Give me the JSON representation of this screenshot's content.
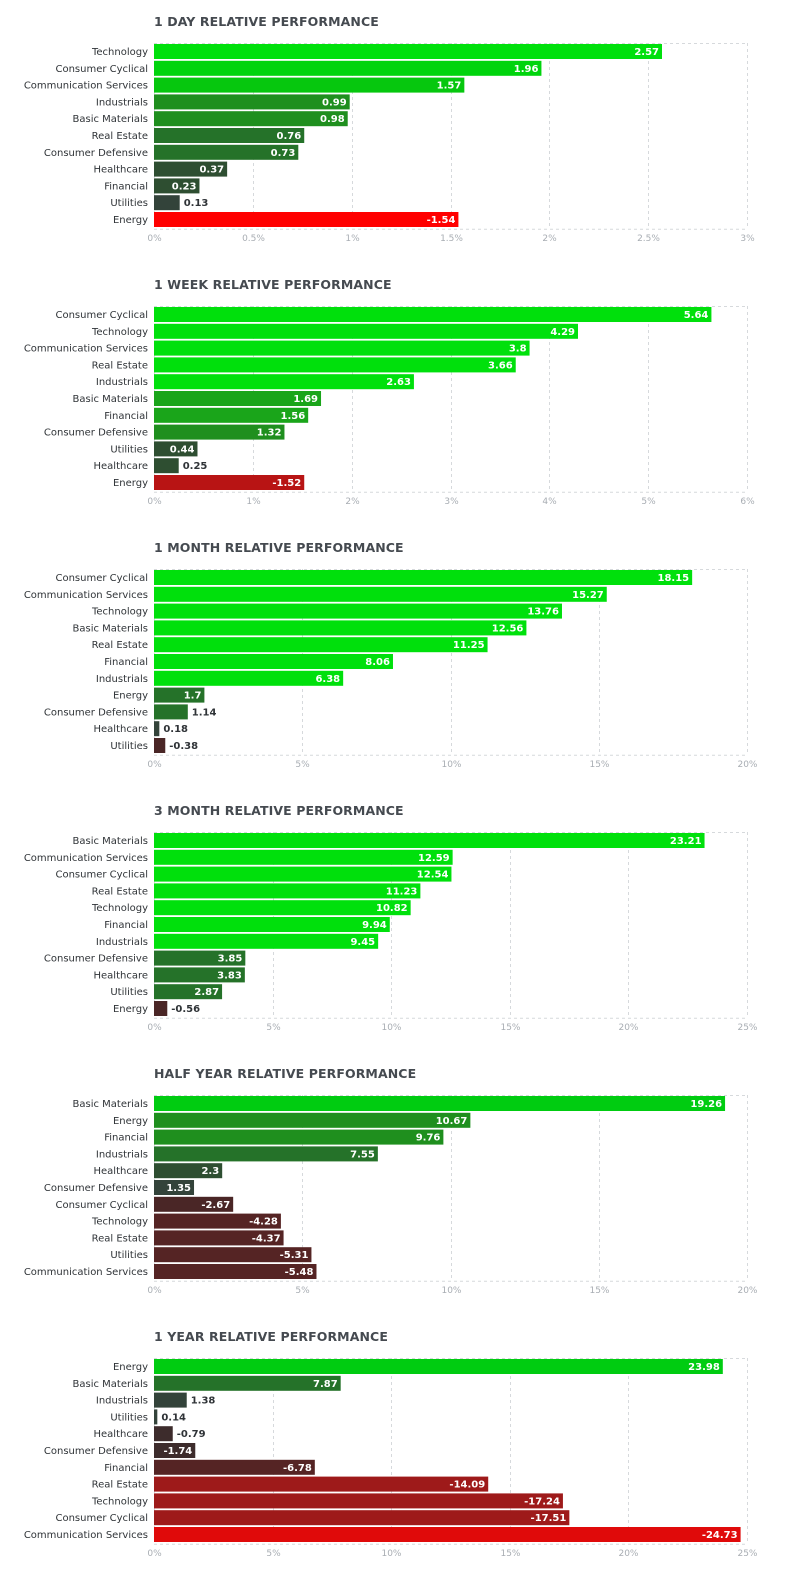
{
  "chart_data": [
    {
      "type": "bar",
      "orientation": "horizontal",
      "title": "1 DAY RELATIVE PERFORMANCE",
      "categories": [
        "Technology",
        "Consumer Cyclical",
        "Communication Services",
        "Industrials",
        "Basic Materials",
        "Real Estate",
        "Consumer Defensive",
        "Healthcare",
        "Financial",
        "Utilities",
        "Energy"
      ],
      "values": [
        2.57,
        1.96,
        1.57,
        0.99,
        0.98,
        0.76,
        0.73,
        0.37,
        0.23,
        0.13,
        -1.54
      ],
      "value_labels": [
        "2.57",
        "1.96",
        "1.57",
        "0.99",
        "0.98",
        "0.76",
        "0.73",
        "0.37",
        "0.23",
        "0.13",
        "-1.54"
      ],
      "bar_colors": [
        "#00e00c",
        "#00d40d",
        "#06c70e",
        "#1f8f1e",
        "#1f8f1e",
        "#257229",
        "#257229",
        "#2e4e31",
        "#2e4e31",
        "#33433a",
        "#ff0000"
      ],
      "xlim": [
        0,
        3
      ],
      "xticks": [
        0,
        0.5,
        1,
        1.5,
        2,
        2.5,
        3
      ],
      "xtick_labels": [
        "0%",
        "0.5%",
        "1%",
        "1.5%",
        "2%",
        "2.5%",
        "3%"
      ],
      "grid": true
    },
    {
      "type": "bar",
      "orientation": "horizontal",
      "title": "1 WEEK RELATIVE PERFORMANCE",
      "categories": [
        "Consumer Cyclical",
        "Technology",
        "Communication Services",
        "Real Estate",
        "Industrials",
        "Basic Materials",
        "Financial",
        "Consumer Defensive",
        "Utilities",
        "Healthcare",
        "Energy"
      ],
      "values": [
        5.64,
        4.29,
        3.8,
        3.66,
        2.63,
        1.69,
        1.56,
        1.32,
        0.44,
        0.25,
        -1.52
      ],
      "value_labels": [
        "5.64",
        "4.29",
        "3.8",
        "3.66",
        "2.63",
        "1.69",
        "1.56",
        "1.32",
        "0.44",
        "0.25",
        "-1.52"
      ],
      "bar_colors": [
        "#00e00c",
        "#00e00c",
        "#00e00c",
        "#00e00c",
        "#00e00c",
        "#1aa51a",
        "#1aa51a",
        "#1f8f1e",
        "#2e4e31",
        "#2e4e31",
        "#b81414"
      ],
      "xlim": [
        0,
        6
      ],
      "xticks": [
        0,
        1,
        2,
        3,
        4,
        5,
        6
      ],
      "xtick_labels": [
        "0%",
        "1%",
        "2%",
        "3%",
        "4%",
        "5%",
        "6%"
      ],
      "grid": true
    },
    {
      "type": "bar",
      "orientation": "horizontal",
      "title": "1 MONTH RELATIVE PERFORMANCE",
      "categories": [
        "Consumer Cyclical",
        "Communication Services",
        "Technology",
        "Basic Materials",
        "Real Estate",
        "Financial",
        "Industrials",
        "Energy",
        "Consumer Defensive",
        "Healthcare",
        "Utilities"
      ],
      "values": [
        18.15,
        15.27,
        13.76,
        12.56,
        11.25,
        8.06,
        6.38,
        1.7,
        1.14,
        0.18,
        -0.38
      ],
      "value_labels": [
        "18.15",
        "15.27",
        "13.76",
        "12.56",
        "11.25",
        "8.06",
        "6.38",
        "1.7",
        "1.14",
        "0.18",
        "-0.38"
      ],
      "bar_colors": [
        "#00e00c",
        "#00e00c",
        "#00e00c",
        "#00e00c",
        "#00e00c",
        "#00e00c",
        "#00e00c",
        "#257229",
        "#257229",
        "#33433a",
        "#4a2626"
      ],
      "xlim": [
        0,
        20
      ],
      "xticks": [
        0,
        5,
        10,
        15,
        20
      ],
      "xtick_labels": [
        "0%",
        "5%",
        "10%",
        "15%",
        "20%"
      ],
      "grid": true
    },
    {
      "type": "bar",
      "orientation": "horizontal",
      "title": "3 MONTH RELATIVE PERFORMANCE",
      "categories": [
        "Basic Materials",
        "Communication Services",
        "Consumer Cyclical",
        "Real Estate",
        "Technology",
        "Financial",
        "Industrials",
        "Consumer Defensive",
        "Healthcare",
        "Utilities",
        "Energy"
      ],
      "values": [
        23.21,
        12.59,
        12.54,
        11.23,
        10.82,
        9.94,
        9.45,
        3.85,
        3.83,
        2.87,
        -0.56
      ],
      "value_labels": [
        "23.21",
        "12.59",
        "12.54",
        "11.23",
        "10.82",
        "9.94",
        "9.45",
        "3.85",
        "3.83",
        "2.87",
        "-0.56"
      ],
      "bar_colors": [
        "#00e00c",
        "#00e00c",
        "#00e00c",
        "#00e00c",
        "#00e00c",
        "#00e00c",
        "#00e00c",
        "#257229",
        "#257229",
        "#257229",
        "#4a2626"
      ],
      "xlim": [
        0,
        25
      ],
      "xticks": [
        0,
        5,
        10,
        15,
        20,
        25
      ],
      "xtick_labels": [
        "0%",
        "5%",
        "10%",
        "15%",
        "20%",
        "25%"
      ],
      "grid": true
    },
    {
      "type": "bar",
      "orientation": "horizontal",
      "title": "HALF YEAR RELATIVE PERFORMANCE",
      "categories": [
        "Basic Materials",
        "Energy",
        "Financial",
        "Industrials",
        "Healthcare",
        "Consumer Defensive",
        "Consumer Cyclical",
        "Technology",
        "Real Estate",
        "Utilities",
        "Communication Services"
      ],
      "values": [
        19.26,
        10.67,
        9.76,
        7.55,
        2.3,
        1.35,
        -2.67,
        -4.28,
        -4.37,
        -5.31,
        -5.48
      ],
      "value_labels": [
        "19.26",
        "10.67",
        "9.76",
        "7.55",
        "2.3",
        "1.35",
        "-2.67",
        "-4.28",
        "-4.37",
        "-5.31",
        "-5.48"
      ],
      "bar_colors": [
        "#00cc11",
        "#1f8f1e",
        "#1f8f1e",
        "#257229",
        "#2e4e31",
        "#33433a",
        "#4a2626",
        "#552424",
        "#552424",
        "#552424",
        "#552424"
      ],
      "xlim": [
        0,
        20
      ],
      "xticks": [
        0,
        5,
        10,
        15,
        20
      ],
      "xtick_labels": [
        "0%",
        "5%",
        "10%",
        "15%",
        "20%"
      ],
      "grid": true
    },
    {
      "type": "bar",
      "orientation": "horizontal",
      "title": "1 YEAR RELATIVE PERFORMANCE",
      "categories": [
        "Energy",
        "Basic Materials",
        "Industrials",
        "Utilities",
        "Healthcare",
        "Consumer Defensive",
        "Financial",
        "Real Estate",
        "Technology",
        "Consumer Cyclical",
        "Communication Services"
      ],
      "values": [
        23.98,
        7.87,
        1.38,
        0.14,
        -0.79,
        -1.74,
        -6.78,
        -14.09,
        -17.24,
        -17.51,
        -24.73
      ],
      "value_labels": [
        "23.98",
        "7.87",
        "1.38",
        "0.14",
        "-0.79",
        "-1.74",
        "-6.78",
        "-14.09",
        "-17.24",
        "-17.51",
        "-24.73"
      ],
      "bar_colors": [
        "#00cc11",
        "#257229",
        "#33433a",
        "#33433a",
        "#3d2c2c",
        "#3d2c2c",
        "#552424",
        "#9e1a1a",
        "#9e1a1a",
        "#9e1a1a",
        "#e00a0a"
      ],
      "xlim": [
        0,
        25
      ],
      "xticks": [
        0,
        5,
        10,
        15,
        20,
        25
      ],
      "xtick_labels": [
        "0%",
        "5%",
        "10%",
        "15%",
        "20%",
        "25%"
      ],
      "grid": true
    }
  ]
}
